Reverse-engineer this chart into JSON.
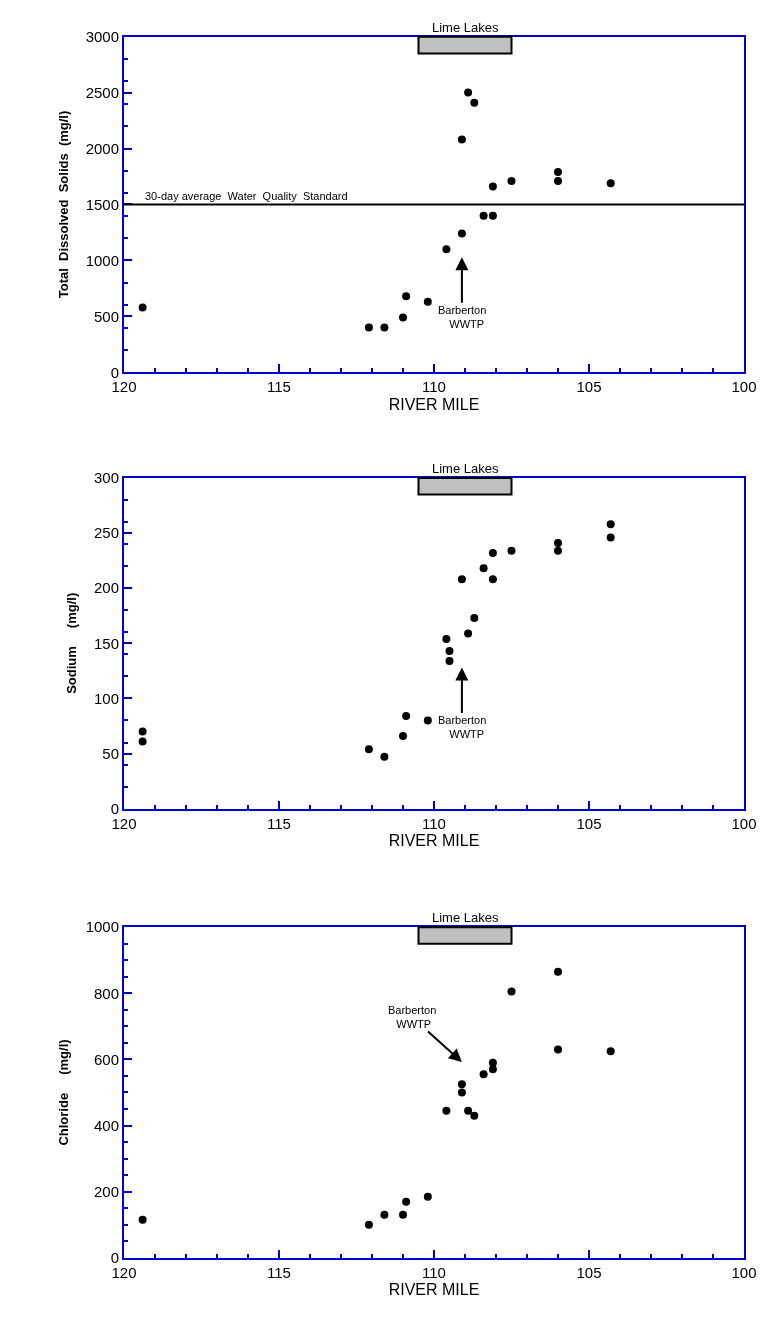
{
  "chart_data": [
    {
      "type": "scatter",
      "xlabel": "RIVER MILE",
      "ylabel": "Total  Dissolved  Solids  (mg/l)",
      "xlim": [
        120,
        100
      ],
      "xticks": [
        120,
        115,
        110,
        105,
        100
      ],
      "ylim": [
        0,
        3000
      ],
      "yticks": [
        0,
        500,
        1000,
        1500,
        2000,
        2500,
        3000
      ],
      "marker": "circle",
      "series": [
        {
          "color": "#000000",
          "x": [
            119.4,
            112.1,
            111.6,
            111.0,
            110.9,
            110.2,
            109.6,
            109.1,
            109.1,
            108.9,
            108.7,
            108.4,
            108.1,
            108.1,
            107.5,
            106.0,
            106.0,
            104.3
          ],
          "values": [
            580,
            400,
            400,
            490,
            680,
            630,
            1100,
            1240,
            2080,
            2500,
            2410,
            1400,
            1400,
            1660,
            1710,
            1790,
            1710,
            1690
          ]
        }
      ],
      "ref_lines": [
        {
          "axis": "y",
          "value": 1500,
          "label": "30-day average  Water  Quality  Standard",
          "color": "#000000"
        }
      ],
      "bands": [
        {
          "axis": "x",
          "from": 110.5,
          "to": 107.5,
          "label": "Lime Lakes",
          "color": "#c0c0c0"
        }
      ],
      "annotations": [
        "Barberton\n   WWTP"
      ]
    },
    {
      "type": "scatter",
      "xlabel": "RIVER MILE",
      "ylabel": "Sodium     (mg/l)",
      "xlim": [
        120,
        100
      ],
      "xticks": [
        120,
        115,
        110,
        105,
        100
      ],
      "ylim": [
        0,
        300
      ],
      "yticks": [
        0,
        50,
        100,
        150,
        200,
        250,
        300
      ],
      "marker": "circle",
      "series": [
        {
          "color": "#000000",
          "x": [
            119.4,
            119.4,
            112.1,
            111.6,
            111.0,
            110.9,
            110.2,
            109.6,
            109.5,
            109.5,
            109.1,
            108.9,
            108.7,
            108.4,
            108.1,
            108.1,
            107.5,
            106.0,
            106.0,
            104.3,
            104.3
          ],
          "values": [
            70,
            61,
            54,
            47,
            66,
            84,
            80,
            154,
            143,
            134,
            208,
            159,
            173,
            218,
            232,
            208,
            234,
            241,
            234,
            258,
            246
          ]
        }
      ],
      "bands": [
        {
          "axis": "x",
          "from": 110.5,
          "to": 107.5,
          "label": "Lime Lakes",
          "color": "#c0c0c0"
        }
      ],
      "annotations": [
        "Barberton\n   WWTP"
      ]
    },
    {
      "type": "scatter",
      "xlabel": "RIVER MILE",
      "ylabel": "Chloride     (mg/l)",
      "xlim": [
        120,
        100
      ],
      "xticks": [
        120,
        115,
        110,
        105,
        100
      ],
      "ylim": [
        0,
        1000
      ],
      "yticks": [
        0,
        200,
        400,
        600,
        800,
        1000
      ],
      "marker": "circle",
      "series": [
        {
          "color": "#000000",
          "x": [
            119.4,
            112.1,
            111.6,
            111.0,
            110.9,
            110.2,
            109.6,
            109.1,
            109.1,
            108.9,
            108.7,
            108.4,
            108.1,
            108.1,
            107.5,
            106.0,
            106.0,
            104.3
          ],
          "values": [
            115,
            100,
            130,
            130,
            170,
            185,
            445,
            525,
            500,
            445,
            430,
            555,
            590,
            570,
            805,
            865,
            630,
            625
          ]
        }
      ],
      "bands": [
        {
          "axis": "x",
          "from": 110.5,
          "to": 107.5,
          "label": "Lime Lakes",
          "color": "#c0c0c0"
        }
      ],
      "annotations": [
        "Barberton\n WWTP"
      ]
    }
  ]
}
